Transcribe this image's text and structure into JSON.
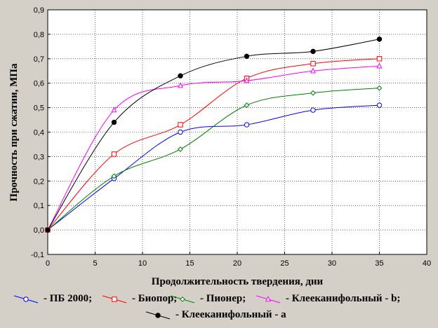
{
  "chart_data": {
    "type": "scatter",
    "xlabel": "Продолжительность твердения, дни",
    "ylabel": "Прочность при сжатии, МПа",
    "xlim": [
      0,
      40
    ],
    "ylim": [
      -0.1,
      0.9
    ],
    "xticks": [
      "0",
      "5",
      "10",
      "15",
      "20",
      "25",
      "30",
      "35",
      "40"
    ],
    "yticks": [
      "-0,1",
      "0,0",
      "0,1",
      "0,2",
      "0,3",
      "0,4",
      "0,5",
      "0,6",
      "0,7",
      "0,8",
      "0,9"
    ],
    "grid": true,
    "legend_position": "bottom",
    "series": [
      {
        "name": "- ПБ 2000;",
        "color": "#0000ff",
        "marker": "circle",
        "x": [
          0,
          7,
          14,
          21,
          28,
          35
        ],
        "y": [
          0,
          0.21,
          0.4,
          0.43,
          0.49,
          0.51
        ]
      },
      {
        "name": "- Биопор;",
        "color": "#ff0000",
        "marker": "square",
        "x": [
          0,
          7,
          14,
          21,
          28,
          35
        ],
        "y": [
          0,
          0.31,
          0.43,
          0.62,
          0.68,
          0.7
        ]
      },
      {
        "name": "- Пионер;",
        "color": "#008000",
        "marker": "diamond",
        "x": [
          0,
          7,
          14,
          21,
          28,
          35
        ],
        "y": [
          0,
          0.22,
          0.33,
          0.51,
          0.56,
          0.58
        ]
      },
      {
        "name": "- Клееканифольный - b;",
        "color": "#ff00ff",
        "marker": "triangle",
        "x": [
          0,
          7,
          14,
          21,
          28,
          35
        ],
        "y": [
          0,
          0.49,
          0.59,
          0.61,
          0.65,
          0.67
        ]
      },
      {
        "name": "- Клееканифольный - а",
        "color": "#000000",
        "marker": "filled-circle",
        "x": [
          0,
          7,
          14,
          21,
          28,
          35
        ],
        "y": [
          0,
          0.44,
          0.63,
          0.71,
          0.73,
          0.78
        ]
      }
    ]
  }
}
